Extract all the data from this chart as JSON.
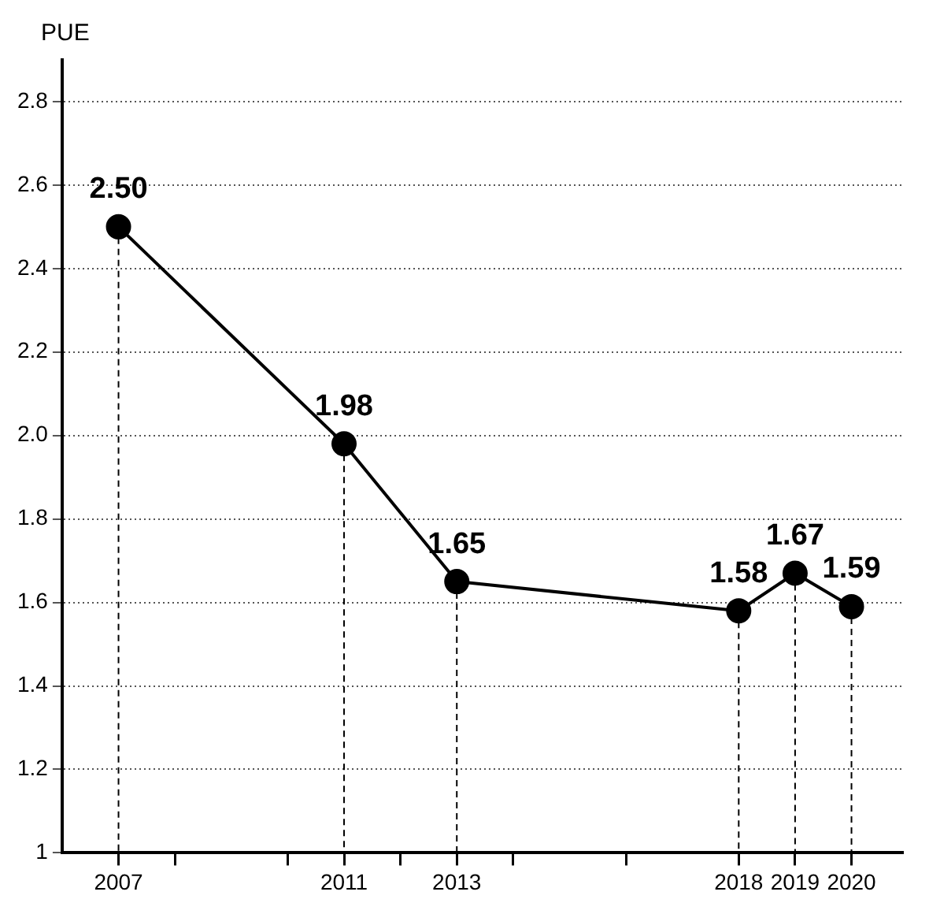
{
  "chart_data": {
    "type": "line",
    "ylabel": "PUE",
    "x": [
      2007,
      2011,
      2013,
      2018,
      2019,
      2020
    ],
    "series": [
      {
        "color": "#000000",
        "values": [
          2.5,
          1.98,
          1.65,
          1.58,
          1.67,
          1.59
        ],
        "value_labels": [
          "2.50",
          "1.98",
          "1.65",
          "1.58",
          "1.67",
          "1.59"
        ]
      }
    ],
    "xlim": [
      2006,
      2020.9
    ],
    "xticks": [
      {
        "value": 2007,
        "label": "2007"
      },
      {
        "value": 2008,
        "label": null
      },
      {
        "value": 2010,
        "label": null
      },
      {
        "value": 2011,
        "label": "2011"
      },
      {
        "value": 2012,
        "label": null
      },
      {
        "value": 2013,
        "label": "2013"
      },
      {
        "value": 2014,
        "label": null
      },
      {
        "value": 2016,
        "label": null
      },
      {
        "value": 2018,
        "label": "2018"
      },
      {
        "value": 2019,
        "label": "2019"
      },
      {
        "value": 2020,
        "label": "2020"
      }
    ],
    "ylim": [
      1,
      2.9
    ],
    "yticks": [
      1,
      1.2,
      1.4,
      1.6,
      1.8,
      {
        "value": 2,
        "label": "2.0"
      },
      2.2,
      2.4,
      2.6,
      2.8
    ],
    "grid": "y",
    "marker": "circle",
    "line_style": "solid",
    "legend": false
  }
}
